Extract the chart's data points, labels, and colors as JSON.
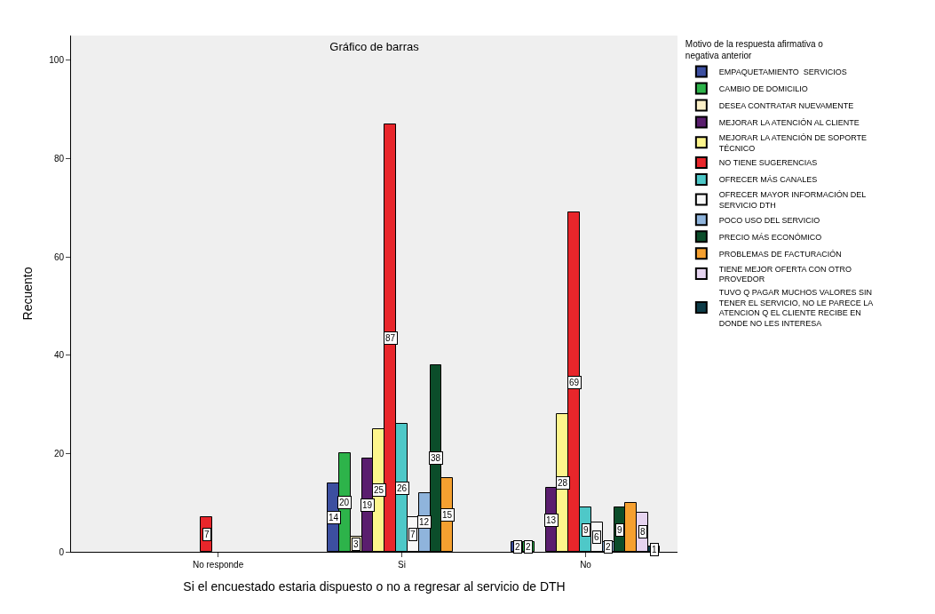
{
  "chart_data": {
    "type": "bar",
    "title": "Gráfico de barras",
    "xlabel": "Si el encuestado estaria dispuesto o no a regresar al servicio de DTH",
    "ylabel": "Recuento",
    "legend_title": "Motivo de la respuesta afirmativa o negativa anterior",
    "categories": [
      "No responde",
      "Si",
      "No"
    ],
    "ylim": [
      0,
      105
    ],
    "yticks": [
      0,
      20,
      40,
      60,
      80,
      100
    ],
    "grid": false,
    "legend": "right",
    "series": [
      {
        "name": "EMPAQUETAMIENTO  SERVICIOS",
        "color": "#3c4fa0",
        "values": [
          null,
          14,
          2
        ],
        "value_labels": [
          null,
          "14",
          "2"
        ]
      },
      {
        "name": "CAMBIO DE DOMICILIO",
        "color": "#2db34a",
        "values": [
          null,
          20,
          2
        ],
        "value_labels": [
          null,
          "20",
          "2"
        ]
      },
      {
        "name": "DESEA CONTRATAR NUEVAMENTE",
        "color": "#fbf0c8",
        "values": [
          null,
          3,
          null
        ],
        "value_labels": [
          null,
          "3",
          null
        ]
      },
      {
        "name": "MEJORAR LA ATENCIÓN AL CLIENTE",
        "color": "#5a1e6e",
        "values": [
          null,
          19,
          13
        ],
        "value_labels": [
          null,
          "19",
          "13"
        ]
      },
      {
        "name": "MEJORAR LA ATENCIÓN DE SOPORTE TÉCNICO",
        "color": "#fdf58c",
        "values": [
          null,
          25,
          28
        ],
        "value_labels": [
          null,
          "25",
          "28"
        ]
      },
      {
        "name": "NO TIENE SUGERENCIAS",
        "color": "#e8262b",
        "values": [
          7,
          87,
          69
        ],
        "value_labels": [
          "7",
          "87",
          "69"
        ]
      },
      {
        "name": "OFRECER MÁS CANALES",
        "color": "#4ec8c8",
        "values": [
          null,
          26,
          9
        ],
        "value_labels": [
          null,
          "26",
          "9"
        ]
      },
      {
        "name": "OFRECER MAYOR INFORMACIÓN DEL SERVICIO DTH",
        "color": "#f8f8f8",
        "values": [
          null,
          7,
          6
        ],
        "value_labels": [
          null,
          "7",
          "6"
        ]
      },
      {
        "name": "POCO USO DEL SERVICIO",
        "color": "#8fb4dc",
        "values": [
          null,
          12,
          2
        ],
        "value_labels": [
          null,
          "12",
          "2"
        ]
      },
      {
        "name": "PRECIO MÁS ECONÓMICO",
        "color": "#0b4d2a",
        "values": [
          null,
          38,
          9
        ],
        "value_labels": [
          null,
          "38",
          "9"
        ]
      },
      {
        "name": "PROBLEMAS DE FACTURACIÓN",
        "color": "#f5a030",
        "values": [
          null,
          15,
          10
        ],
        "value_labels": [
          null,
          "15",
          null
        ]
      },
      {
        "name": "TIENE MEJOR OFERTA CON OTRO PROVEDOR",
        "color": "#e6d4f0",
        "values": [
          null,
          null,
          8
        ],
        "value_labels": [
          null,
          null,
          "8"
        ]
      },
      {
        "name": "TUVO Q PAGAR MUCHOS VALORES SIN TENER EL SERVICIO, NO LE PARECE LA ATENCION Q EL CLIENTE RECIBE EN DONDE NO LES INTERESA",
        "color": "#0d3c48",
        "values": [
          null,
          null,
          1
        ],
        "value_labels": [
          null,
          null,
          "1"
        ]
      }
    ]
  }
}
